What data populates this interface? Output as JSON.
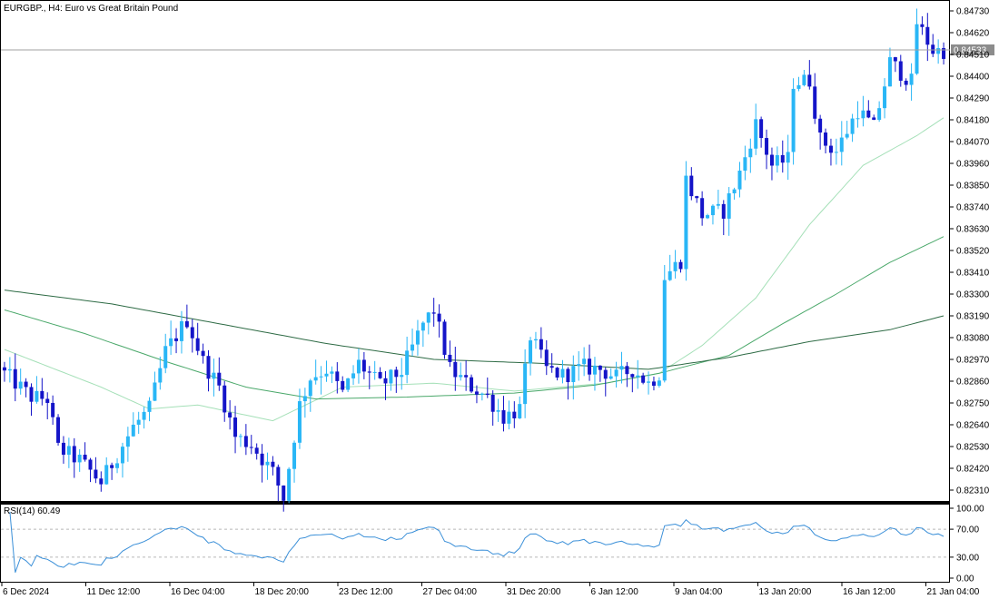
{
  "window": {
    "symbol_title": "EURGBP., H4:  Euro vs Great Britain Pound",
    "rsi_label": "RSI(14) 60.49",
    "current_price": "0.84533"
  },
  "colors": {
    "bull": "#29b6f6",
    "bear": "#1414c8",
    "ma_fast": "#a5e0b8",
    "ma_mid": "#4aa86a",
    "ma_slow": "#2e6b45",
    "rsi_line": "#3a8fd8",
    "frame": "#000000",
    "price_line": "#a0a0a0"
  },
  "chart_data": {
    "type": "candlestick",
    "y_axis_labels": [
      "0.84730",
      "0.84620",
      "0.84510",
      "0.84400",
      "0.84290",
      "0.84180",
      "0.84070",
      "0.83960",
      "0.83850",
      "0.83740",
      "0.83630",
      "0.83520",
      "0.83410",
      "0.83300",
      "0.83190",
      "0.83080",
      "0.82970",
      "0.82860",
      "0.82750",
      "0.82640",
      "0.82530",
      "0.82420",
      "0.82310"
    ],
    "y_axis_values": [
      0.8473,
      0.8462,
      0.8451,
      0.844,
      0.8429,
      0.8418,
      0.8407,
      0.8396,
      0.8385,
      0.8374,
      0.8363,
      0.8352,
      0.8341,
      0.833,
      0.8319,
      0.8308,
      0.8297,
      0.8286,
      0.8275,
      0.8264,
      0.8253,
      0.8242,
      0.8231
    ],
    "ylim": [
      0.82205,
      0.8478
    ],
    "current_price": 0.84533,
    "x_axis_labels": [
      "6 Dec 2024",
      "11 Dec 12:00",
      "16 Dec 04:00",
      "18 Dec 20:00",
      "23 Dec 12:00",
      "27 Dec 04:00",
      "31 Dec 20:00",
      "6 Jan 12:00",
      "9 Jan 04:00",
      "13 Jan 20:00",
      "16 Jan 12:00",
      "21 Jan 04:00"
    ],
    "waypoints": [
      [
        0,
        0.829
      ],
      [
        5,
        0.8278
      ],
      [
        8,
        0.8277
      ],
      [
        10,
        0.8252
      ],
      [
        14,
        0.8246
      ],
      [
        18,
        0.8235
      ],
      [
        21,
        0.8249
      ],
      [
        24,
        0.8263
      ],
      [
        27,
        0.8272
      ],
      [
        30,
        0.8301
      ],
      [
        34,
        0.8317
      ],
      [
        37,
        0.8296
      ],
      [
        40,
        0.8283
      ],
      [
        43,
        0.8258
      ],
      [
        46,
        0.8254
      ],
      [
        50,
        0.824
      ],
      [
        52,
        0.8227
      ],
      [
        55,
        0.8274
      ],
      [
        57,
        0.8288
      ],
      [
        60,
        0.8292
      ],
      [
        63,
        0.828
      ],
      [
        66,
        0.8295
      ],
      [
        70,
        0.8284
      ],
      [
        74,
        0.8291
      ],
      [
        78,
        0.8315
      ],
      [
        80,
        0.8322
      ],
      [
        83,
        0.8292
      ],
      [
        86,
        0.8285
      ],
      [
        90,
        0.8278
      ],
      [
        93,
        0.8268
      ],
      [
        96,
        0.8272
      ],
      [
        98,
        0.8309
      ],
      [
        101,
        0.8292
      ],
      [
        104,
        0.8289
      ],
      [
        108,
        0.8293
      ],
      [
        111,
        0.8292
      ],
      [
        114,
        0.8288
      ],
      [
        117,
        0.8292
      ],
      [
        120,
        0.8285
      ],
      [
        122,
        0.829
      ],
      [
        123,
        0.8339
      ],
      [
        126,
        0.8347
      ],
      [
        127,
        0.8388
      ],
      [
        130,
        0.837
      ],
      [
        134,
        0.8372
      ],
      [
        137,
        0.8391
      ],
      [
        140,
        0.8416
      ],
      [
        143,
        0.8395
      ],
      [
        146,
        0.8398
      ],
      [
        147,
        0.8437
      ],
      [
        150,
        0.8438
      ],
      [
        152,
        0.8408
      ],
      [
        155,
        0.8402
      ],
      [
        159,
        0.8423
      ],
      [
        162,
        0.8414
      ],
      [
        165,
        0.8447
      ],
      [
        169,
        0.8437
      ],
      [
        170,
        0.8467
      ],
      [
        173,
        0.8453
      ],
      [
        175,
        0.8453
      ]
    ],
    "ma_lines": [
      {
        "name": "fast",
        "points": [
          [
            0,
            0.8302
          ],
          [
            18,
            0.8283
          ],
          [
            27,
            0.8272
          ],
          [
            36,
            0.8274
          ],
          [
            50,
            0.8266
          ],
          [
            63,
            0.8283
          ],
          [
            80,
            0.8285
          ],
          [
            95,
            0.8281
          ],
          [
            112,
            0.8285
          ],
          [
            122,
            0.829
          ],
          [
            130,
            0.8304
          ],
          [
            140,
            0.8328
          ],
          [
            150,
            0.8365
          ],
          [
            160,
            0.8395
          ],
          [
            170,
            0.841
          ],
          [
            175,
            0.8419
          ]
        ]
      },
      {
        "name": "mid",
        "points": [
          [
            0,
            0.8322
          ],
          [
            15,
            0.831
          ],
          [
            30,
            0.8296
          ],
          [
            45,
            0.8283
          ],
          [
            58,
            0.8277
          ],
          [
            75,
            0.8278
          ],
          [
            95,
            0.828
          ],
          [
            110,
            0.8284
          ],
          [
            122,
            0.829
          ],
          [
            135,
            0.8299
          ],
          [
            145,
            0.8315
          ],
          [
            155,
            0.833
          ],
          [
            165,
            0.8346
          ],
          [
            175,
            0.8359
          ]
        ]
      },
      {
        "name": "slow",
        "points": [
          [
            0,
            0.8332
          ],
          [
            20,
            0.8325
          ],
          [
            40,
            0.8315
          ],
          [
            60,
            0.8305
          ],
          [
            80,
            0.8297
          ],
          [
            100,
            0.8295
          ],
          [
            120,
            0.8292
          ],
          [
            135,
            0.8298
          ],
          [
            150,
            0.8306
          ],
          [
            165,
            0.8312
          ],
          [
            175,
            0.8319
          ]
        ]
      }
    ],
    "rsi": {
      "label": "RSI(14) 60.49",
      "value": 60.49,
      "levels_labels": [
        "100.00",
        "70.00",
        "30.00",
        "0.00"
      ],
      "levels": [
        100,
        70,
        30,
        0
      ],
      "ylim": [
        0,
        100
      ]
    }
  }
}
